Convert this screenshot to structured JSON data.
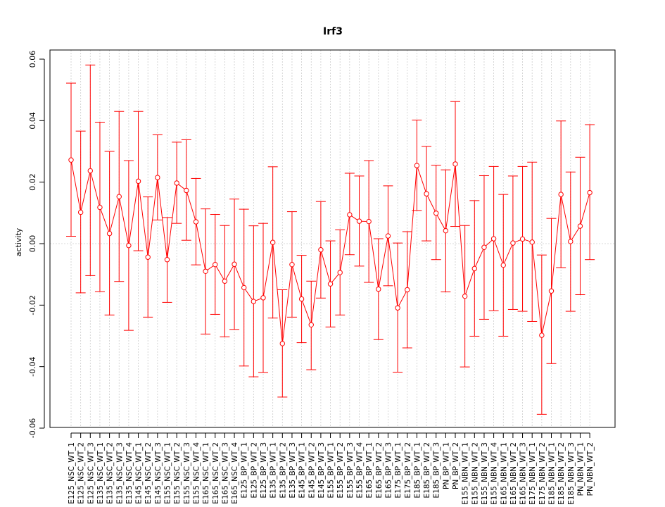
{
  "chart_data": {
    "type": "line",
    "title": "Irf3",
    "xlabel": "",
    "ylabel": "activity",
    "ylim": [
      -0.06,
      0.06
    ],
    "yticks": [
      -0.06,
      -0.04,
      -0.02,
      0.0,
      0.02,
      0.04,
      0.06
    ],
    "ytick_labels": [
      "-0.06",
      "-0.04",
      "-0.02",
      "0.00",
      "0.02",
      "0.04",
      "0.06"
    ],
    "grid": true,
    "colors": {
      "series": "#ff0000",
      "grid": "#cccccc",
      "axis": "#000000"
    },
    "categories": [
      "E125_NSC_WT_1",
      "E125_NSC_WT_2",
      "E125_NSC_WT_3",
      "E135_NSC_WT_1",
      "E135_NSC_WT_2",
      "E135_NSC_WT_3",
      "E135_NSC_WT_4",
      "E145_NSC_WT_1",
      "E145_NSC_WT_2",
      "E145_NSC_WT_3",
      "E155_NSC_WT_1",
      "E155_NSC_WT_2",
      "E155_NSC_WT_3",
      "E155_NSC_WT_4",
      "E165_NSC_WT_1",
      "E165_NSC_WT_2",
      "E165_NSC_WT_3",
      "E165_NSC_WT_4",
      "E125_BP_WT_1",
      "E125_BP_WT_2",
      "E125_BP_WT_3",
      "E135_BP_WT_1",
      "E135_BP_WT_2",
      "E135_BP_WT_3",
      "E145_BP_WT_1",
      "E145_BP_WT_2",
      "E145_BP_WT_3",
      "E155_BP_WT_1",
      "E155_BP_WT_2",
      "E155_BP_WT_3",
      "E155_BP_WT_4",
      "E165_BP_WT_1",
      "E165_BP_WT_2",
      "E165_BP_WT_3",
      "E175_BP_WT_1",
      "E175_BP_WT_2",
      "E185_BP_WT_1",
      "E185_BP_WT_2",
      "E185_BP_WT_3",
      "PN_BP_WT_1",
      "PN_BP_WT_2",
      "E155_NBN_WT_1",
      "E155_NBN_WT_2",
      "E155_NBN_WT_3",
      "E155_NBN_WT_4",
      "E165_NBN_WT_1",
      "E165_NBN_WT_2",
      "E165_NBN_WT_3",
      "E175_NBN_WT_1",
      "E175_NBN_WT_2",
      "E185_NBN_WT_1",
      "E185_NBN_WT_2",
      "E185_NBN_WT_3",
      "PN_NBN_WT_1",
      "PN_NBN_WT_2"
    ],
    "values": [
      0.0272,
      0.0102,
      0.0237,
      0.0118,
      0.0033,
      0.0153,
      -0.0006,
      0.0203,
      -0.0044,
      0.0215,
      -0.0052,
      0.0197,
      0.0173,
      0.0071,
      -0.009,
      -0.0068,
      -0.0122,
      -0.0067,
      -0.0143,
      -0.0188,
      -0.0176,
      0.0004,
      -0.0325,
      -0.0068,
      -0.018,
      -0.0264,
      -0.002,
      -0.0131,
      -0.0094,
      0.0094,
      0.0073,
      0.0072,
      -0.0148,
      0.0025,
      -0.0209,
      -0.015,
      0.0254,
      0.0162,
      0.0099,
      0.0042,
      0.0259,
      -0.0171,
      -0.0081,
      -0.0012,
      0.0016,
      -0.007,
      0.0002,
      0.0015,
      0.0005,
      -0.0298,
      -0.0154,
      0.016,
      0.0007,
      0.0057,
      0.0166
    ],
    "upper": [
      0.0522,
      0.0366,
      0.0581,
      0.0395,
      0.03,
      0.043,
      0.027,
      0.043,
      0.0152,
      0.0354,
      0.0085,
      0.033,
      0.0338,
      0.0212,
      0.0113,
      0.0095,
      0.0059,
      0.0145,
      0.0112,
      0.0058,
      0.0066,
      0.025,
      -0.015,
      0.0104,
      -0.0038,
      -0.0122,
      0.0137,
      0.0009,
      0.0045,
      0.0229,
      0.022,
      0.027,
      0.0016,
      0.0188,
      0.0002,
      0.0039,
      0.0402,
      0.0316,
      0.0255,
      0.024,
      0.0462,
      0.0059,
      0.014,
      0.0221,
      0.0251,
      0.016,
      0.022,
      0.0251,
      0.0265,
      -0.0037,
      0.0082,
      0.0399,
      0.0233,
      0.0281,
      0.0387
    ],
    "lower": [
      0.0024,
      -0.016,
      -0.0104,
      -0.0156,
      -0.0232,
      -0.0123,
      -0.0282,
      -0.0023,
      -0.0239,
      0.0077,
      -0.0191,
      0.0066,
      0.0011,
      -0.0069,
      -0.0294,
      -0.023,
      -0.0303,
      -0.0279,
      -0.0398,
      -0.0433,
      -0.0419,
      -0.0242,
      -0.0499,
      -0.0239,
      -0.0322,
      -0.041,
      -0.0177,
      -0.0271,
      -0.0232,
      -0.0036,
      -0.0073,
      -0.0126,
      -0.0312,
      -0.0137,
      -0.0418,
      -0.0339,
      0.0108,
      0.0009,
      -0.0052,
      -0.0157,
      0.0056,
      -0.0401,
      -0.0301,
      -0.0246,
      -0.0218,
      -0.0301,
      -0.0214,
      -0.022,
      -0.0253,
      -0.0555,
      -0.039,
      -0.0078,
      -0.022,
      -0.0166,
      -0.0052
    ]
  }
}
